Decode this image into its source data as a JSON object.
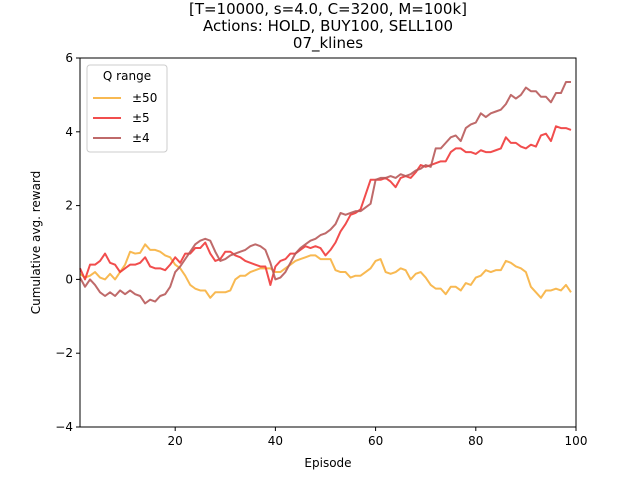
{
  "chart_data": {
    "type": "line",
    "title_lines": [
      "[T=10000, s=4.0, C=3200, M=100k]",
      "Actions: HOLD, BUY100, SELL100",
      "07_klines"
    ],
    "xlabel": "Episode",
    "ylabel": "Cumulative avg. reward",
    "xlim": [
      1,
      100
    ],
    "ylim": [
      -4,
      6
    ],
    "xticks": [
      20,
      40,
      60,
      80,
      100
    ],
    "yticks": [
      -4,
      -2,
      0,
      2,
      4,
      6
    ],
    "grid": false,
    "legend": {
      "title": "Q range",
      "placement": "top-left"
    },
    "series": [
      {
        "name": "±50",
        "color": "#f7b13f",
        "values": [
          0.15,
          0.05,
          0.1,
          0.2,
          0.05,
          0.0,
          0.15,
          0.0,
          0.2,
          0.4,
          0.75,
          0.7,
          0.72,
          0.95,
          0.8,
          0.8,
          0.75,
          0.65,
          0.6,
          0.4,
          0.3,
          0.1,
          -0.15,
          -0.25,
          -0.3,
          -0.3,
          -0.5,
          -0.35,
          -0.35,
          -0.35,
          -0.3,
          0.0,
          0.1,
          0.1,
          0.2,
          0.25,
          0.3,
          0.3,
          0.3,
          0.2,
          0.2,
          0.3,
          0.4,
          0.5,
          0.55,
          0.6,
          0.65,
          0.65,
          0.55,
          0.55,
          0.55,
          0.25,
          0.2,
          0.2,
          0.05,
          0.1,
          0.1,
          0.2,
          0.3,
          0.5,
          0.55,
          0.2,
          0.15,
          0.2,
          0.3,
          0.25,
          0.0,
          0.15,
          0.2,
          0.05,
          -0.15,
          -0.25,
          -0.25,
          -0.4,
          -0.2,
          -0.2,
          -0.3,
          -0.1,
          -0.15,
          0.05,
          0.1,
          0.25,
          0.2,
          0.25,
          0.25,
          0.5,
          0.45,
          0.35,
          0.3,
          0.2,
          -0.2,
          -0.35,
          -0.5,
          -0.3,
          -0.3,
          -0.25,
          -0.3,
          -0.15,
          -0.35
        ]
      },
      {
        "name": "±5",
        "color": "#f03a3a",
        "values": [
          0.3,
          0.0,
          0.4,
          0.4,
          0.5,
          0.7,
          0.45,
          0.4,
          0.2,
          0.3,
          0.4,
          0.4,
          0.45,
          0.6,
          0.35,
          0.3,
          0.3,
          0.25,
          0.4,
          0.6,
          0.45,
          0.7,
          0.7,
          0.85,
          0.85,
          1.0,
          0.7,
          0.5,
          0.55,
          0.75,
          0.75,
          0.65,
          0.6,
          0.5,
          0.45,
          0.4,
          0.35,
          0.35,
          -0.15,
          0.35,
          0.5,
          0.55,
          0.7,
          0.7,
          0.8,
          0.9,
          0.85,
          0.9,
          0.85,
          0.65,
          0.8,
          1.0,
          1.3,
          1.5,
          1.75,
          1.8,
          1.9,
          2.3,
          2.7,
          2.7,
          2.7,
          2.75,
          2.65,
          2.5,
          2.75,
          2.8,
          2.75,
          2.9,
          3.1,
          3.05,
          3.1,
          3.15,
          3.2,
          3.2,
          3.45,
          3.55,
          3.55,
          3.45,
          3.45,
          3.4,
          3.5,
          3.45,
          3.45,
          3.5,
          3.55,
          3.85,
          3.7,
          3.7,
          3.6,
          3.55,
          3.65,
          3.6,
          3.9,
          3.95,
          3.75,
          4.15,
          4.1,
          4.1,
          4.05
        ]
      },
      {
        "name": "±4",
        "color": "#b85a5a",
        "values": [
          0.05,
          -0.2,
          0.0,
          -0.15,
          -0.35,
          -0.45,
          -0.35,
          -0.45,
          -0.3,
          -0.4,
          -0.3,
          -0.4,
          -0.45,
          -0.65,
          -0.55,
          -0.6,
          -0.45,
          -0.4,
          -0.2,
          0.2,
          0.35,
          0.55,
          0.75,
          0.95,
          1.05,
          1.1,
          1.05,
          0.75,
          0.5,
          0.55,
          0.65,
          0.7,
          0.75,
          0.8,
          0.9,
          0.95,
          0.9,
          0.8,
          0.45,
          0.0,
          0.05,
          0.2,
          0.45,
          0.7,
          0.85,
          0.95,
          1.05,
          1.1,
          1.2,
          1.25,
          1.35,
          1.5,
          1.8,
          1.75,
          1.8,
          1.85,
          1.85,
          1.95,
          2.05,
          2.7,
          2.75,
          2.75,
          2.8,
          2.75,
          2.85,
          2.8,
          2.85,
          2.95,
          3.0,
          3.1,
          3.05,
          3.55,
          3.55,
          3.7,
          3.85,
          3.9,
          3.75,
          4.1,
          4.2,
          4.25,
          4.5,
          4.4,
          4.5,
          4.55,
          4.6,
          4.75,
          5.0,
          4.9,
          5.0,
          5.2,
          5.1,
          5.1,
          4.95,
          4.95,
          4.8,
          5.05,
          5.05,
          5.35,
          5.35
        ]
      }
    ]
  }
}
